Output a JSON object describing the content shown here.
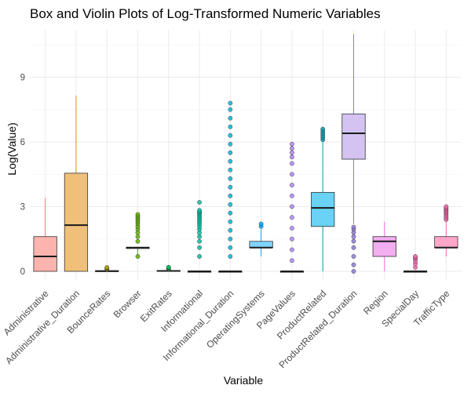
{
  "chart_data": {
    "type": "box",
    "title": "Box and Violin Plots of Log-Transformed Numeric Variables",
    "xlabel": "Variable",
    "ylabel": "Log(Value)",
    "ylim": [
      -0.4,
      11.2
    ],
    "yticks": [
      0,
      3,
      6,
      9
    ],
    "grid": true,
    "legend": "none",
    "categories": [
      "Administrative",
      "Administrative_Duration",
      "BounceRates",
      "Browser",
      "ExitRates",
      "Informational",
      "Informational_Duration",
      "OperatingSystems",
      "PageValues",
      "ProductRelated",
      "ProductRelated_Duration",
      "Region",
      "SpecialDay",
      "TrafficType"
    ],
    "series": [
      {
        "category": "Administrative",
        "color": "#F8766D",
        "box_fill": "#FDB3AE",
        "whisker_min": 0,
        "q1": 0,
        "median": 0.69,
        "q3": 1.61,
        "whisker_max": 3.4,
        "outliers": []
      },
      {
        "category": "Administrative_Duration",
        "color": "#DB8E00",
        "box_fill": "#F0C07A",
        "whisker_min": 0,
        "q1": 0,
        "median": 2.14,
        "q3": 4.55,
        "whisker_max": 8.15,
        "outliers": []
      },
      {
        "category": "BounceRates",
        "color": "#AEA200",
        "box_fill": "#D9D27A",
        "whisker_min": 0,
        "q1": 0,
        "median": 0.01,
        "q3": 0.03,
        "whisker_max": 0.05,
        "outliers": [
          0.08,
          0.1,
          0.13,
          0.16,
          0.18
        ]
      },
      {
        "category": "Browser",
        "color": "#64B200",
        "box_fill": "#B5DA86",
        "whisker_min": 0.69,
        "q1": 1.1,
        "median": 1.1,
        "q3": 1.1,
        "whisker_max": 1.1,
        "outliers": [
          0.69,
          1.39,
          1.61,
          1.79,
          1.95,
          2.08,
          2.2,
          2.3,
          2.4,
          2.48,
          2.56,
          2.64
        ]
      },
      {
        "category": "ExitRates",
        "color": "#00BD5C",
        "box_fill": "#80DEAD",
        "whisker_min": 0,
        "q1": 0.01,
        "median": 0.02,
        "q3": 0.04,
        "whisker_max": 0.08,
        "outliers": [
          0.1,
          0.12,
          0.15,
          0.18,
          0.19
        ]
      },
      {
        "category": "Informational",
        "color": "#00C1A7",
        "box_fill": "#80E0D3",
        "whisker_min": 0,
        "q1": 0,
        "median": 0,
        "q3": 0,
        "whisker_max": 0,
        "outliers": [
          0.69,
          1.1,
          1.39,
          1.61,
          1.79,
          1.95,
          2.08,
          2.2,
          2.3,
          2.4,
          2.48,
          2.56,
          2.64,
          2.71,
          2.77,
          2.83,
          3.2
        ]
      },
      {
        "category": "Informational_Duration",
        "color": "#00BADE",
        "box_fill": "#80DDEF",
        "whisker_min": 0,
        "q1": 0,
        "median": 0,
        "q3": 0,
        "whisker_max": 0,
        "outliers": [
          0.69,
          1.1,
          1.5,
          1.9,
          2.3,
          2.7,
          3.1,
          3.5,
          3.9,
          4.3,
          4.7,
          5.1,
          5.5,
          5.9,
          6.3,
          6.7,
          7.1,
          7.5,
          7.8
        ]
      },
      {
        "category": "OperatingSystems",
        "color": "#00A6FF",
        "box_fill": "#80D3FF",
        "whisker_min": 0.69,
        "q1": 1.1,
        "median": 1.1,
        "q3": 1.39,
        "whisker_max": 1.95,
        "outliers": [
          2.08,
          2.2
        ]
      },
      {
        "category": "PageValues",
        "color": "#B385FF",
        "box_fill": "#D9C2FF",
        "whisker_min": 0,
        "q1": 0,
        "median": 0,
        "q3": 0,
        "whisker_max": 0,
        "outliers": [
          0.5,
          1.0,
          1.5,
          2.0,
          2.5,
          3.0,
          3.5,
          4.0,
          4.5,
          5.0,
          5.3,
          5.5,
          5.7,
          5.9
        ]
      },
      {
        "category": "ProductRelated",
        "color": "#00A0B0",
        "box_fill": "#69D2F5",
        "whisker_min": 0,
        "q1": 2.08,
        "median": 2.94,
        "q3": 3.66,
        "whisker_max": 5.99,
        "outliers": [
          6.1,
          6.2,
          6.3,
          6.4,
          6.5,
          6.6
        ]
      },
      {
        "category": "ProductRelated_Duration",
        "color": "#8F7BD8",
        "box_fill": "#D3C2F2",
        "whisker_min": 2.2,
        "q1": 5.2,
        "median": 6.4,
        "q3": 7.3,
        "whisker_max": 11.0,
        "outliers": [
          0,
          0.3,
          0.69,
          1.1,
          1.4,
          1.61,
          1.8,
          1.95,
          2.05
        ]
      },
      {
        "category": "Region",
        "color": "#EF67EB",
        "box_fill": "#F3ADF1",
        "whisker_min": 0,
        "q1": 0.69,
        "median": 1.39,
        "q3": 1.61,
        "whisker_max": 2.3,
        "outliers": []
      },
      {
        "category": "SpecialDay",
        "color": "#FF63B6",
        "box_fill": "#FFB1DA",
        "whisker_min": 0,
        "q1": 0,
        "median": 0,
        "q3": 0,
        "whisker_max": 0,
        "outliers": [
          0.18,
          0.34,
          0.47,
          0.59,
          0.64,
          0.69
        ]
      },
      {
        "category": "TrafficType",
        "color": "#FF65AC",
        "box_fill": "#FFA6C9",
        "whisker_min": 0.69,
        "q1": 1.1,
        "median": 1.1,
        "q3": 1.61,
        "whisker_max": 2.3,
        "outliers": [
          2.4,
          2.48,
          2.56,
          2.64,
          2.71,
          2.77,
          2.83,
          2.89,
          2.94,
          3.0
        ]
      }
    ]
  }
}
